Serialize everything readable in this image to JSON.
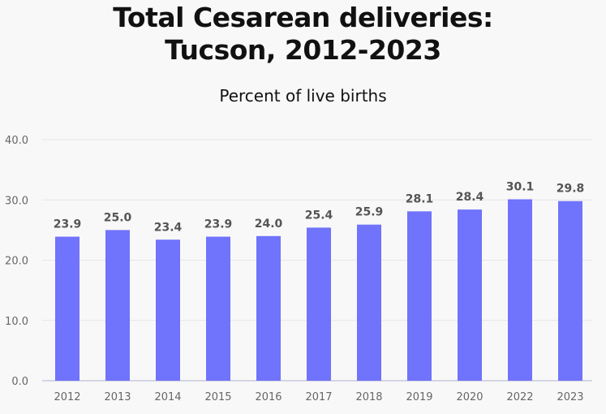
{
  "chart_data": {
    "type": "bar",
    "title": [
      "Total Cesarean deliveries:",
      "Tucson, 2012-2023"
    ],
    "subtitle": "Percent of live births",
    "categories": [
      "2012",
      "2013",
      "2014",
      "2015",
      "2016",
      "2017",
      "2018",
      "2019",
      "2020",
      "2022",
      "2023"
    ],
    "values": [
      23.9,
      25.0,
      23.4,
      23.9,
      24.0,
      25.4,
      25.9,
      28.1,
      28.4,
      30.1,
      29.8
    ],
    "ylim": [
      0,
      40
    ],
    "yticks": [
      "0.0",
      "10.0",
      "20.0",
      "30.0",
      "40.0"
    ],
    "grid": true,
    "xlabel": "",
    "ylabel": "",
    "bar_color": "#7073fb"
  }
}
